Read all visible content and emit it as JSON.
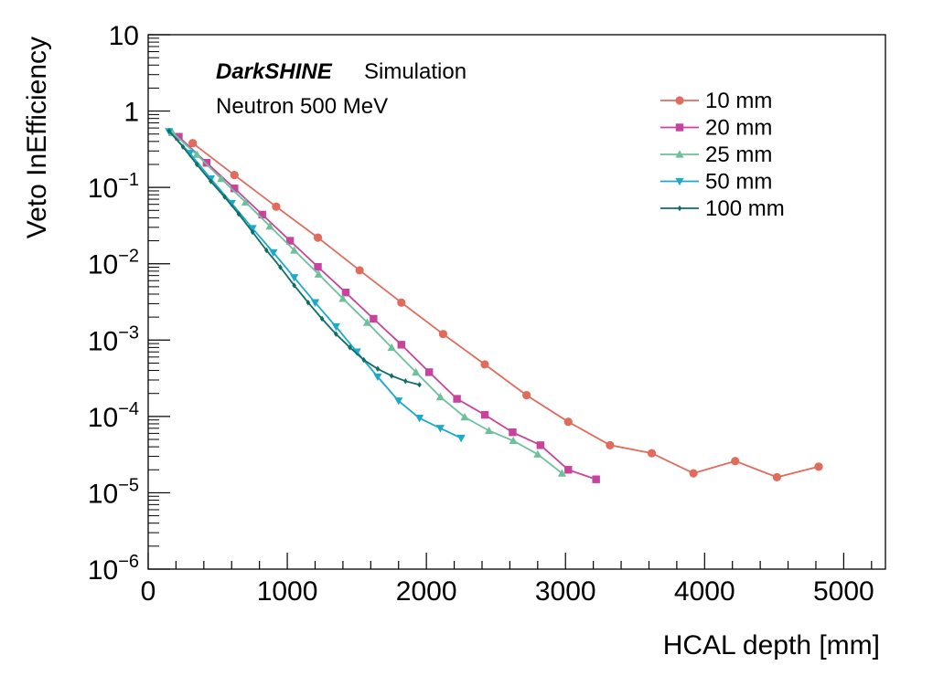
{
  "chart_data": {
    "type": "line",
    "title": "",
    "brand": "DarkSHINE",
    "brand_suffix": "Simulation",
    "subtitle": "Neutron 500 MeV",
    "xlabel": "HCAL depth [mm]",
    "ylabel": "Veto InEfficiency",
    "xlim": [
      0,
      5300
    ],
    "ylim": [
      1e-06,
      10
    ],
    "yscale": "log",
    "x_ticks": [
      0,
      1000,
      2000,
      3000,
      4000,
      5000
    ],
    "x_tick_labels": [
      "0",
      "1000",
      "2000",
      "3000",
      "4000",
      "5000"
    ],
    "y_tick_exponents": [
      1,
      0,
      -1,
      -2,
      -3,
      -4,
      -5,
      -6
    ],
    "y_tick_labels": [
      {
        "base": "10",
        "exp": ""
      },
      {
        "base": "1",
        "exp": ""
      },
      {
        "base": "10",
        "exp": "−1"
      },
      {
        "base": "10",
        "exp": "−2"
      },
      {
        "base": "10",
        "exp": "−3"
      },
      {
        "base": "10",
        "exp": "−4"
      },
      {
        "base": "10",
        "exp": "−5"
      },
      {
        "base": "10",
        "exp": "−6"
      }
    ],
    "legend_position": "top-right",
    "series": [
      {
        "name": "10 mm",
        "color": "#e06c5e",
        "marker": "circle",
        "x": [
          320,
          620,
          920,
          1220,
          1520,
          1820,
          2120,
          2420,
          2720,
          3020,
          3320,
          3620,
          3920,
          4220,
          4520,
          4820
        ],
        "y": [
          0.38,
          0.145,
          0.056,
          0.022,
          0.0082,
          0.0031,
          0.0012,
          0.00048,
          0.00019,
          8.5e-05,
          4.2e-05,
          3.3e-05,
          1.8e-05,
          2.6e-05,
          1.6e-05,
          2.2e-05
        ]
      },
      {
        "name": "20 mm",
        "color": "#c8439b",
        "marker": "square",
        "x": [
          220,
          420,
          620,
          820,
          1020,
          1220,
          1420,
          1620,
          1820,
          2020,
          2220,
          2420,
          2620,
          2820,
          3020,
          3220
        ],
        "y": [
          0.46,
          0.21,
          0.097,
          0.044,
          0.02,
          0.0091,
          0.0042,
          0.0019,
          0.00087,
          0.00038,
          0.00017,
          0.000105,
          6.2e-05,
          4.2e-05,
          2e-05,
          1.5e-05
        ]
      },
      {
        "name": "25 mm",
        "color": "#6cc19c",
        "marker": "triangle-up",
        "x": [
          175,
          350,
          525,
          700,
          875,
          1050,
          1225,
          1400,
          1575,
          1750,
          1925,
          2100,
          2275,
          2450,
          2625,
          2800,
          2975
        ],
        "y": [
          0.52,
          0.27,
          0.13,
          0.064,
          0.031,
          0.015,
          0.0073,
          0.0035,
          0.0017,
          0.0008,
          0.00038,
          0.00018,
          9.8e-05,
          6.5e-05,
          4.8e-05,
          3.2e-05,
          1.8e-05
        ]
      },
      {
        "name": "50 mm",
        "color": "#1ba9cc",
        "marker": "triangle-down",
        "x": [
          150,
          300,
          450,
          600,
          750,
          900,
          1050,
          1200,
          1350,
          1500,
          1650,
          1800,
          1950,
          2100,
          2250
        ],
        "y": [
          0.54,
          0.28,
          0.13,
          0.062,
          0.029,
          0.014,
          0.0066,
          0.0031,
          0.0015,
          0.0007,
          0.00033,
          0.00016,
          9.5e-05,
          7e-05,
          5.2e-05
        ]
      },
      {
        "name": "100 mm",
        "color": "#0e6e68",
        "marker": "diamond",
        "x": [
          150,
          250,
          350,
          450,
          550,
          650,
          750,
          850,
          950,
          1050,
          1150,
          1250,
          1350,
          1450,
          1550,
          1650,
          1750,
          1850,
          1950
        ],
        "y": [
          0.55,
          0.34,
          0.2,
          0.12,
          0.075,
          0.045,
          0.026,
          0.015,
          0.009,
          0.0052,
          0.0031,
          0.0019,
          0.0012,
          0.0008,
          0.00055,
          0.00042,
          0.00034,
          0.00029,
          0.00026
        ]
      }
    ]
  }
}
